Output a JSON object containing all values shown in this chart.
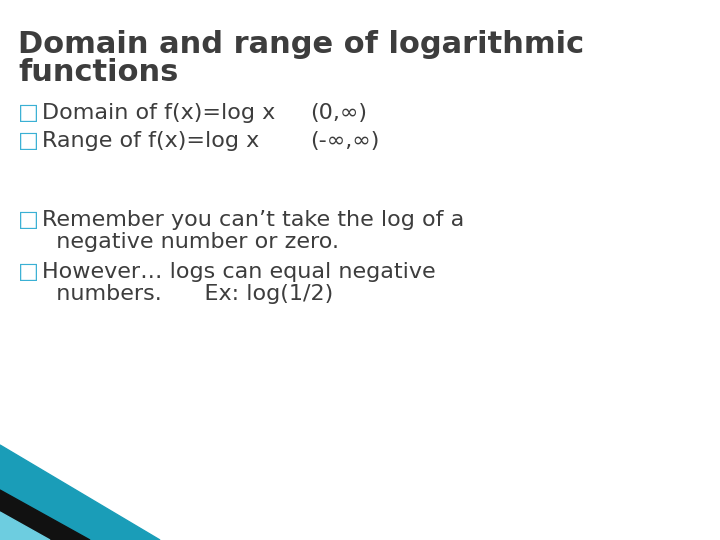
{
  "title_line1": "Domain and range of logarithmic",
  "title_line2": "functions",
  "title_color": "#3d3d3d",
  "title_fontsize": 22,
  "bullet_color": "#3d3d3d",
  "bullet_fontsize": 16,
  "bullet_symbol": "□",
  "bullet_symbol_color": "#3ab0d4",
  "bullets": [
    {
      "label": "Domain of f(x)=log x",
      "value": "(0,∞)"
    },
    {
      "label": "Range of f(x)=log x",
      "value": "(-∞,∞)"
    }
  ],
  "notes": [
    {
      "line1": "Remember you can’t take the log of a",
      "line2": "  negative number or zero."
    },
    {
      "line1": "However… logs can equal negative",
      "line2": "  numbers.      Ex: log(1/2)"
    }
  ],
  "bg_color": "#ffffff",
  "corner_teal_color": "#1a9db8",
  "corner_black_color": "#111111",
  "corner_light_color": "#6dcde0"
}
